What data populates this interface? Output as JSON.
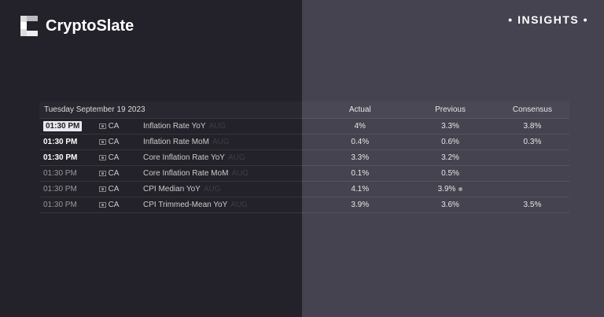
{
  "brand": {
    "name": "CryptoSlate"
  },
  "badge": "• INSIGHTS •",
  "table": {
    "date": "Tuesday September 19 2023",
    "headers": {
      "actual": "Actual",
      "previous": "Previous",
      "consensus": "Consensus"
    },
    "rows": [
      {
        "time": "01:30 PM",
        "country": "CA",
        "event": "Inflation Rate YoY",
        "ref": "AUG",
        "actual": "4%",
        "previous": "3.3%",
        "consensus": "3.8%"
      },
      {
        "time": "01:30 PM",
        "country": "CA",
        "event": "Inflation Rate MoM",
        "ref": "AUG",
        "actual": "0.4%",
        "previous": "0.6%",
        "consensus": "0.3%"
      },
      {
        "time": "01:30 PM",
        "country": "CA",
        "event": "Core Inflation Rate YoY",
        "ref": "AUG",
        "actual": "3.3%",
        "previous": "3.2%",
        "consensus": ""
      },
      {
        "time": "01:30 PM",
        "country": "CA",
        "event": "Core Inflation Rate MoM",
        "ref": "AUG",
        "actual": "0.1%",
        "previous": "0.5%",
        "consensus": ""
      },
      {
        "time": "01:30 PM",
        "country": "CA",
        "event": "CPI Median YoY",
        "ref": "AUG",
        "actual": "4.1%",
        "previous": "3.9%",
        "consensus": ""
      },
      {
        "time": "01:30 PM",
        "country": "CA",
        "event": "CPI Trimmed-Mean YoY",
        "ref": "AUG",
        "actual": "3.9%",
        "previous": "3.6%",
        "consensus": "3.5%"
      }
    ]
  }
}
